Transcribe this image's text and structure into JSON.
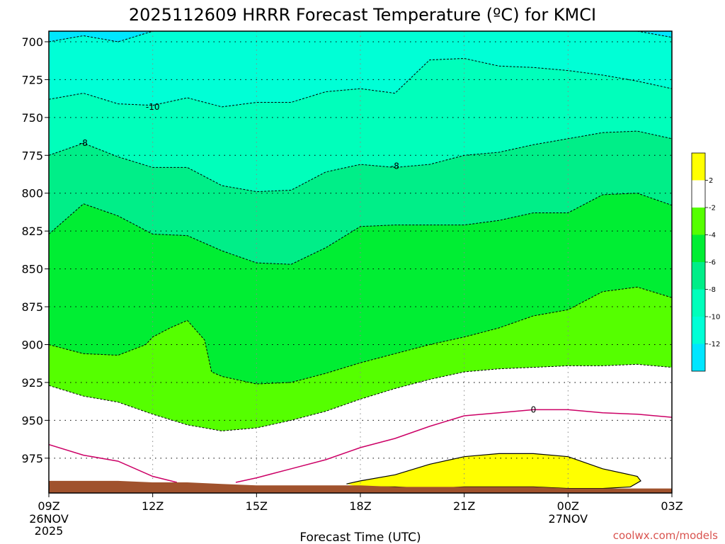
{
  "title": "2025112609 HRRR Forecast Temperature (ºC) for KMCI",
  "credit": "coolwx.com/models",
  "chart_data": {
    "type": "contour",
    "title": "2025112609 HRRR Forecast Temperature (ºC) for KMCI",
    "xlabel": "Forecast Time (UTC)",
    "ylabel": "",
    "x_ticks": [
      {
        "label": "09Z",
        "line2": "26NOV",
        "line3": "2025"
      },
      {
        "label": "12Z",
        "line2": "",
        "line3": ""
      },
      {
        "label": "15Z",
        "line2": "",
        "line3": ""
      },
      {
        "label": "18Z",
        "line2": "",
        "line3": ""
      },
      {
        "label": "21Z",
        "line2": "",
        "line3": ""
      },
      {
        "label": "00Z",
        "line2": "27NOV",
        "line3": ""
      },
      {
        "label": "03Z",
        "line2": "",
        "line3": ""
      }
    ],
    "xlim_hours": [
      0,
      18
    ],
    "y_ticks": [
      700,
      725,
      750,
      775,
      800,
      825,
      850,
      875,
      900,
      925,
      950,
      975
    ],
    "ylim_hpa": [
      693,
      998
    ],
    "legend": {
      "placement": "right",
      "labels": [
        "2",
        "-2",
        "-4",
        "-6",
        "-8",
        "-10",
        "-12"
      ],
      "colors": [
        "#ffff00",
        "#ffffff",
        "#55ff00",
        "#00ee33",
        "#00ee88",
        "#00ffbb",
        "#00ffd6",
        "#00e6ff"
      ]
    },
    "contour_labels": [
      "-10",
      "-8",
      "-8",
      "0"
    ],
    "fill_colors": {
      "lt_minus12": "#00e6ff",
      "minus12_to_minus10": "#00ffd6",
      "minus10_to_minus8": "#00ffbb",
      "minus8_to_minus6": "#00ee88",
      "minus6_to_minus4": "#00ee33",
      "minus4_to_minus2": "#55ff00",
      "minus2_to_2": "#ffffff",
      "gt_2": "#ffff00",
      "ground": "#a0522d"
    },
    "isotherms": [
      {
        "value": -12,
        "points": [
          [
            0,
            700
          ],
          [
            1,
            696
          ],
          [
            2,
            700
          ],
          [
            3,
            693
          ],
          [
            17,
            693
          ],
          [
            18,
            697
          ]
        ]
      },
      {
        "value": -10,
        "points": [
          [
            0,
            738
          ],
          [
            1,
            734
          ],
          [
            2,
            741
          ],
          [
            3,
            742
          ],
          [
            4,
            737
          ],
          [
            5,
            743
          ],
          [
            6,
            740
          ],
          [
            7,
            740
          ],
          [
            8,
            733
          ],
          [
            9,
            731
          ],
          [
            10,
            734
          ],
          [
            11,
            712
          ],
          [
            12,
            711
          ],
          [
            13,
            716
          ],
          [
            14,
            717
          ],
          [
            15,
            719
          ],
          [
            16,
            722
          ],
          [
            17,
            726
          ],
          [
            18,
            731
          ]
        ]
      },
      {
        "value": -8,
        "points": [
          [
            0,
            775
          ],
          [
            1,
            767
          ],
          [
            2,
            776
          ],
          [
            3,
            783
          ],
          [
            4,
            783
          ],
          [
            5,
            795
          ],
          [
            6,
            799
          ],
          [
            7,
            798
          ],
          [
            8,
            786
          ],
          [
            9,
            781
          ],
          [
            10,
            783
          ],
          [
            11,
            781
          ],
          [
            12,
            775
          ],
          [
            13,
            773
          ],
          [
            14,
            768
          ],
          [
            15,
            764
          ],
          [
            16,
            760
          ],
          [
            17,
            759
          ],
          [
            18,
            764
          ]
        ]
      },
      {
        "value": -6,
        "points": [
          [
            0,
            827
          ],
          [
            1,
            807
          ],
          [
            2,
            815
          ],
          [
            3,
            827
          ],
          [
            4,
            828
          ],
          [
            5,
            838
          ],
          [
            6,
            846
          ],
          [
            7,
            847
          ],
          [
            8,
            836
          ],
          [
            9,
            822
          ],
          [
            10,
            821
          ],
          [
            11,
            821
          ],
          [
            12,
            821
          ],
          [
            13,
            818
          ],
          [
            14,
            813
          ],
          [
            15,
            813
          ],
          [
            16,
            801
          ],
          [
            17,
            800
          ],
          [
            18,
            808
          ]
        ]
      },
      {
        "value": -4,
        "points": [
          [
            0,
            900
          ],
          [
            1,
            906
          ],
          [
            2,
            907
          ],
          [
            2.8,
            900
          ],
          [
            3,
            895
          ],
          [
            3.5,
            889
          ],
          [
            4,
            884
          ],
          [
            4.5,
            897
          ],
          [
            4.7,
            918
          ],
          [
            5,
            921
          ],
          [
            6,
            926
          ],
          [
            7,
            925
          ],
          [
            8,
            919
          ],
          [
            9,
            912
          ],
          [
            10,
            906
          ],
          [
            11,
            900
          ],
          [
            12,
            895
          ],
          [
            13,
            889
          ],
          [
            14,
            881
          ],
          [
            15,
            877
          ],
          [
            16,
            865
          ],
          [
            17,
            862
          ],
          [
            18,
            869
          ]
        ]
      },
      {
        "value": -2,
        "points": [
          [
            0,
            927
          ],
          [
            1,
            934
          ],
          [
            2,
            938
          ],
          [
            3,
            946
          ],
          [
            4,
            953
          ],
          [
            5,
            957
          ],
          [
            6,
            955
          ],
          [
            7,
            950
          ],
          [
            8,
            944
          ],
          [
            9,
            936
          ],
          [
            10,
            929
          ],
          [
            11,
            923
          ],
          [
            12,
            918
          ],
          [
            13,
            916
          ],
          [
            14,
            915
          ],
          [
            15,
            914
          ],
          [
            16,
            914
          ],
          [
            17,
            913
          ],
          [
            18,
            915
          ]
        ]
      },
      {
        "value": 0,
        "points": [
          [
            0,
            966
          ],
          [
            1,
            973
          ],
          [
            2,
            977
          ],
          [
            3,
            987
          ],
          [
            3.7,
            991
          ]
        ],
        "points2": [
          [
            5.4,
            991
          ],
          [
            6,
            988
          ],
          [
            7,
            982
          ],
          [
            8,
            976
          ],
          [
            9,
            968
          ],
          [
            10,
            962
          ],
          [
            11,
            954
          ],
          [
            12,
            947
          ],
          [
            13,
            945
          ],
          [
            14,
            943
          ],
          [
            15,
            943
          ],
          [
            16,
            945
          ],
          [
            17,
            946
          ],
          [
            18,
            948
          ]
        ]
      },
      {
        "value": 2,
        "points": [
          [
            8.6,
            992
          ],
          [
            9,
            990
          ],
          [
            10,
            986
          ],
          [
            11,
            979
          ],
          [
            12,
            974
          ],
          [
            13,
            972
          ],
          [
            14,
            972
          ],
          [
            15,
            974
          ],
          [
            16,
            982
          ],
          [
            17,
            987
          ],
          [
            17.1,
            990
          ],
          [
            16.8,
            994
          ],
          [
            16,
            995
          ],
          [
            15,
            995
          ],
          [
            14,
            994
          ],
          [
            13,
            994
          ],
          [
            12,
            994
          ],
          [
            11,
            995
          ],
          [
            10,
            994
          ],
          [
            9,
            994
          ]
        ]
      }
    ],
    "ground": {
      "points": [
        [
          0,
          990
        ],
        [
          1,
          990
        ],
        [
          2,
          990
        ],
        [
          3,
          991
        ],
        [
          4,
          991
        ],
        [
          5,
          992
        ],
        [
          6,
          993
        ],
        [
          7,
          993
        ],
        [
          8,
          993
        ],
        [
          9,
          993
        ],
        [
          10,
          994
        ],
        [
          11,
          994
        ],
        [
          12,
          994
        ],
        [
          13,
          994
        ],
        [
          14,
          994
        ],
        [
          15,
          995
        ],
        [
          16,
          995
        ],
        [
          17,
          995
        ],
        [
          18,
          995
        ]
      ]
    }
  }
}
